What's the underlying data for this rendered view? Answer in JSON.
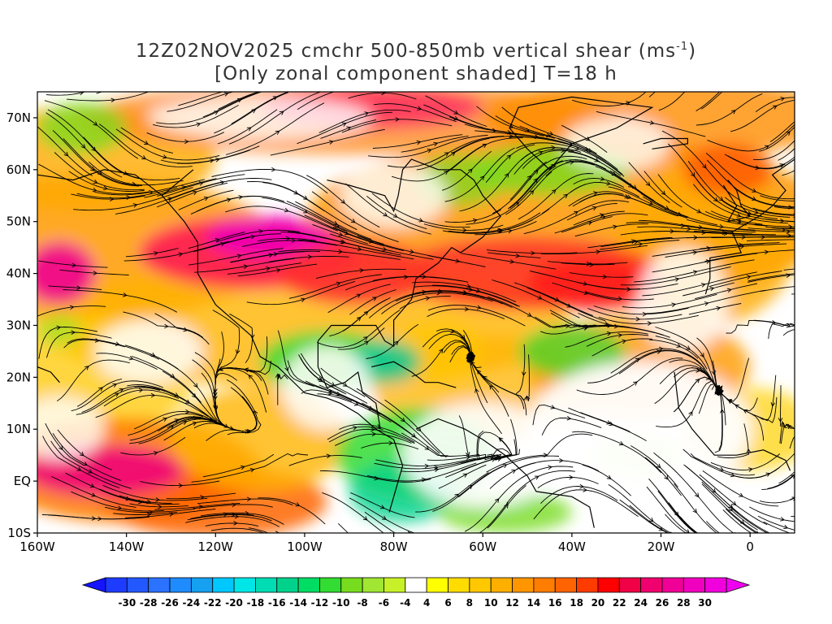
{
  "title": {
    "line1_main": "12Z02NOV2025 cmchr 500-850mb vertical shear (ms",
    "line1_sup": "-1",
    "line1_close": ")",
    "line2": "[Only zonal component shaded] T=18 h"
  },
  "map": {
    "lon_range": [
      -160,
      10
    ],
    "lat_range": [
      -10,
      75
    ],
    "lat_ticks": [
      {
        "value": 70,
        "label": "70N"
      },
      {
        "value": 60,
        "label": "60N"
      },
      {
        "value": 50,
        "label": "50N"
      },
      {
        "value": 40,
        "label": "40N"
      },
      {
        "value": 30,
        "label": "30N"
      },
      {
        "value": 20,
        "label": "20N"
      },
      {
        "value": 10,
        "label": "10N"
      },
      {
        "value": 0,
        "label": "EQ"
      },
      {
        "value": -10,
        "label": "10S"
      }
    ],
    "lon_ticks": [
      {
        "value": -160,
        "label": "160W"
      },
      {
        "value": -140,
        "label": "140W"
      },
      {
        "value": -120,
        "label": "120W"
      },
      {
        "value": -100,
        "label": "100W"
      },
      {
        "value": -80,
        "label": "80W"
      },
      {
        "value": -60,
        "label": "60W"
      },
      {
        "value": -40,
        "label": "40W"
      },
      {
        "value": -20,
        "label": "20W"
      },
      {
        "value": 0,
        "label": "0"
      }
    ]
  },
  "colorbar": {
    "labels": [
      "-30",
      "-28",
      "-26",
      "-24",
      "-22",
      "-20",
      "-18",
      "-16",
      "-14",
      "-12",
      "-10",
      "-8",
      "-6",
      "-4",
      "4",
      "6",
      "8",
      "10",
      "12",
      "14",
      "16",
      "18",
      "20",
      "22",
      "24",
      "26",
      "28",
      "30"
    ],
    "colors": [
      "#1e3cff",
      "#2458ff",
      "#2a72ff",
      "#1e8cff",
      "#15a0f0",
      "#00c8ff",
      "#00e6e6",
      "#00dcb4",
      "#00d28c",
      "#00dc64",
      "#32dc32",
      "#78dc1e",
      "#a0e632",
      "#c8f028",
      "#ffffff",
      "#ffff00",
      "#ffdc00",
      "#ffc800",
      "#ffaf00",
      "#ff9600",
      "#ff7d00",
      "#ff6400",
      "#ff3c00",
      "#ff0000",
      "#f00046",
      "#f0006e",
      "#f00096",
      "#f000be",
      "#f000dc"
    ]
  }
}
